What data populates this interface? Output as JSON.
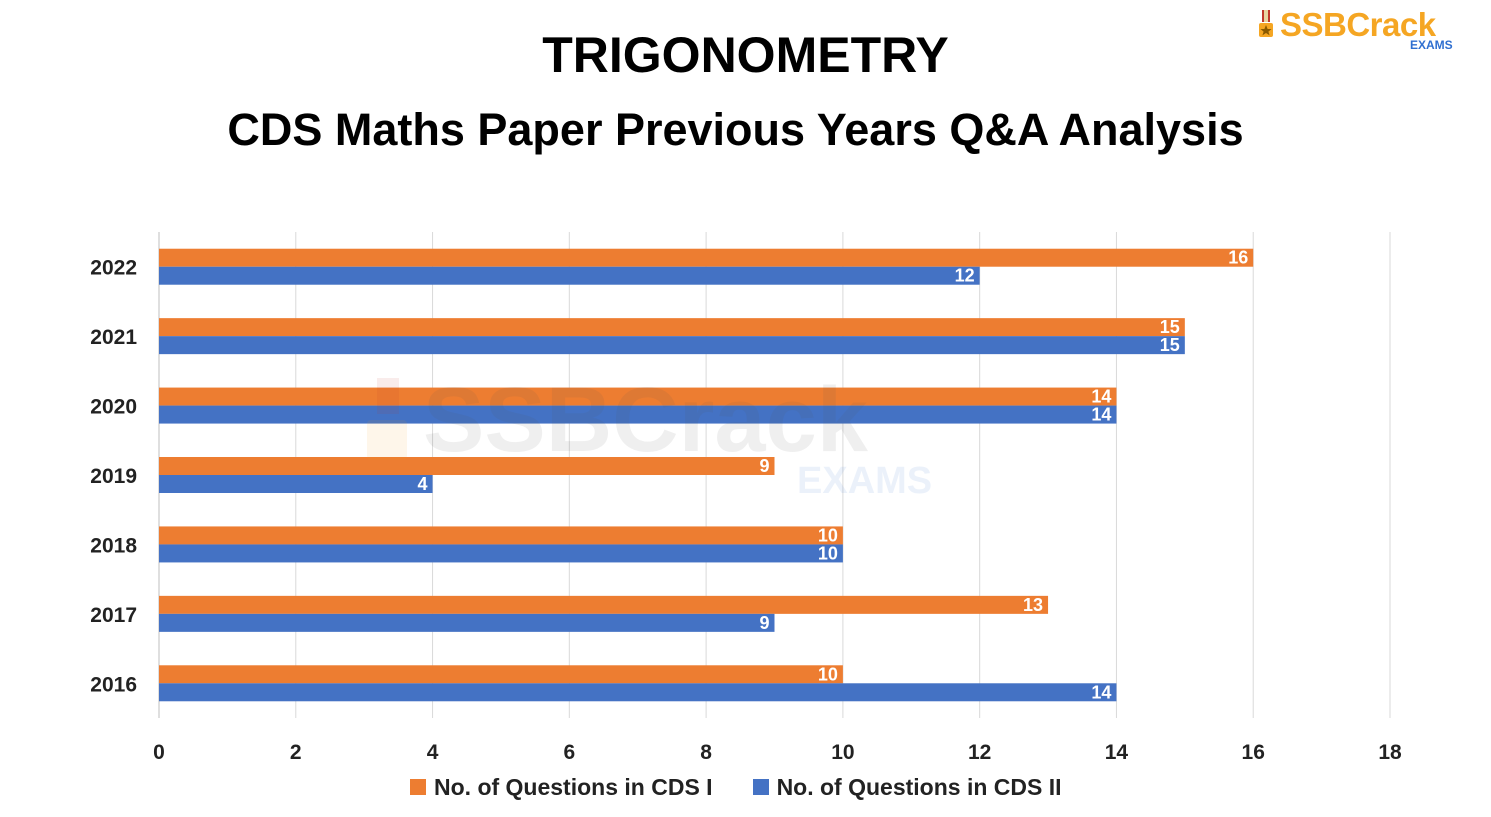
{
  "header": {
    "title": "TRIGONOMETRY",
    "subtitle": "CDS Maths Paper Previous Years Q&A Analysis"
  },
  "logo": {
    "brand": "SSBCrack",
    "sub": "EXAMS",
    "icon": "medal-icon"
  },
  "watermark": {
    "brand": "SSBCrack",
    "sub": "EXAMS"
  },
  "colors": {
    "cds1": "#ED7D31",
    "cds2": "#4472C4",
    "grid": "#D9D9D9",
    "brand": "#F5A623",
    "brand_sub": "#2F6FD0"
  },
  "chart_data": {
    "type": "bar",
    "orientation": "horizontal",
    "title": "TRIGONOMETRY",
    "subtitle": "CDS Maths Paper Previous Years Q&A Analysis",
    "xlabel": "",
    "ylabel": "",
    "categories": [
      "2022",
      "2021",
      "2020",
      "2019",
      "2018",
      "2017",
      "2016"
    ],
    "series": [
      {
        "name": "No. of Questions in CDS I",
        "values": [
          16,
          15,
          14,
          9,
          10,
          13,
          10
        ]
      },
      {
        "name": "No. of Questions in CDS II",
        "values": [
          12,
          15,
          14,
          4,
          10,
          9,
          14
        ]
      }
    ],
    "xlim": [
      0,
      18
    ],
    "xticks": [
      "0",
      "2",
      "4",
      "6",
      "8",
      "10",
      "12",
      "14",
      "16",
      "18"
    ],
    "grid": true,
    "data_labels": true,
    "legend_position": "bottom"
  }
}
